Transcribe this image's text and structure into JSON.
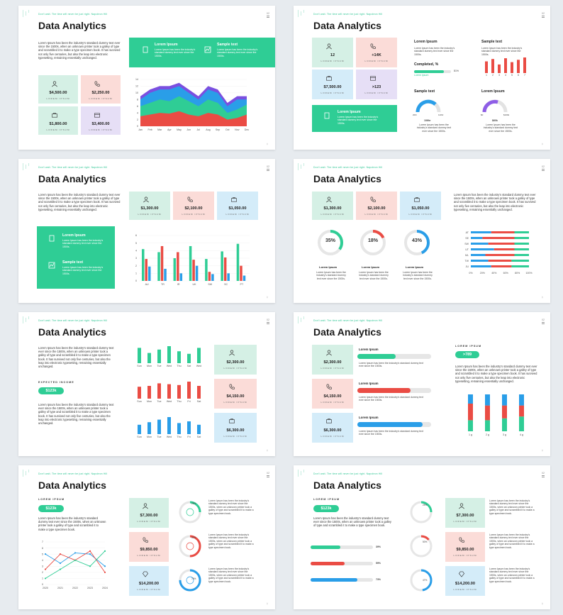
{
  "common": {
    "title": "Data Analytics",
    "tagline": "Don't wait. The time will never be just right. Napoleon Hill",
    "page_label": "02",
    "lorem": "Lorem Ipsum",
    "sample": "Sample text",
    "tile_sub": "LOREM IPSUM",
    "para_long": "Lorem Ipsum has been the industry's standard dummy text ever since the 1500s, when an unknown printer took a galley of type and scrambled it to make a type specimen book. It has survived not only five centuries, but also the leap into electronic typesetting, remaining essentially unchanged.",
    "para_short": "Lorem Ipsum has been the industry's standard dummy text ever since the 1500s.",
    "para_mid": "Lorem Ipsum has been the industry's standard dummy text ever since the 1500s, when an unknown printer took a galley of type and scrambled it to make a type specimen book.",
    "corner_mark": "‡"
  },
  "slide1": {
    "tiles": [
      "$4,500.00",
      "$2,250.00",
      "$1,800.00",
      "$3,400.00"
    ],
    "band": {
      "h1": "Lorem Ipsum",
      "h2": "Sample text",
      "t1": "Lorem Ipsum has been the industry's standard dummy text ever since the 1500s.",
      "t2": "Lorem Ipsum has been the industry's standard dummy text ever since the 1500s."
    }
  },
  "slide2": {
    "tiles": [
      "12",
      "+14K",
      "$7,500.00",
      ">123"
    ],
    "completed": "Completed, %",
    "completed_value": "81%",
    "completed_fraction": 0.81,
    "gauge1_value": "106hr",
    "gauge1_min": "20hr",
    "gauge1_max": "110hr",
    "gauge2_value": "$60k",
    "gauge2_min": "$0",
    "gauge2_max": "$100k"
  },
  "slide3": {
    "tiles": [
      "$1,300.00",
      "$2,100.00",
      "$1,050.00"
    ]
  },
  "slide4": {
    "tiles": [
      "$1,300.00",
      "$2,100.00",
      "$1,050.00"
    ],
    "donuts": [
      "35%",
      "18%",
      "43%"
    ]
  },
  "slide5": {
    "expected": "EXPECTED INCOME",
    "expected_value": "$123k",
    "tiles": [
      "$2,300.00",
      "$4,150.00",
      "$6,300.00"
    ]
  },
  "slide6": {
    "tiles": [
      "$2,300.00",
      "$4,150.00",
      "$6,300.00"
    ],
    "pill": ">789",
    "pill_label": "LOREM IPSUM"
  },
  "slide7": {
    "pill": "$123k",
    "pill_label": "LOREM IPSUM",
    "tiles": [
      "$7,300.00",
      "$9,850.00",
      "$14,200.00"
    ],
    "rings": [
      "25%",
      "50%",
      "75%"
    ]
  },
  "slide8": {
    "pill": "$123k",
    "pill_label": "LOREM IPSUM",
    "tiles": [
      "$7,300.00",
      "$9,850.00",
      "$14,200.00"
    ],
    "bars": [
      "39%",
      "59%",
      "73%"
    ],
    "rings": [
      "25%",
      "50%",
      "47%"
    ]
  },
  "chart_data": [
    {
      "type": "area",
      "title": "",
      "categories": [
        "Jan",
        "Feb",
        "Mar",
        "Apr",
        "May",
        "Jun",
        "Jul",
        "Aug",
        "Sep",
        "Oct",
        "Nov",
        "Dec"
      ],
      "ylim": [
        0,
        14
      ],
      "yticks": [
        0,
        2,
        4,
        6,
        8,
        10,
        12,
        14
      ],
      "series": [
        {
          "values": [
            3,
            3.5,
            4,
            3.8,
            4.5,
            3.5,
            3,
            4,
            3.5,
            2,
            2.5,
            3.5
          ]
        },
        {
          "values": [
            6,
            7,
            8,
            7.5,
            9,
            7.5,
            6,
            8,
            7,
            4,
            5,
            6.5
          ]
        },
        {
          "values": [
            8,
            10,
            11,
            11,
            12,
            10,
            8,
            11,
            10,
            6,
            8,
            8
          ]
        },
        {
          "values": [
            9,
            11,
            12,
            12,
            13,
            11,
            9,
            12,
            11,
            7,
            9,
            9
          ]
        }
      ]
    },
    {
      "type": "bar",
      "title": "",
      "categories": [
        "1",
        "2",
        "3",
        "4",
        "5",
        "6",
        "7"
      ],
      "series": [
        {
          "values": [
            0.75,
            0.9,
            0.55,
            0.95,
            0.7,
            0.85,
            1
          ]
        }
      ]
    },
    {
      "type": "bar",
      "title": "",
      "categories": [
        "AU",
        "TR",
        "IR",
        "UK",
        "SW",
        "SC",
        "PT"
      ],
      "ylim": [
        0,
        6
      ],
      "yticks": [
        0,
        1,
        2,
        3,
        4,
        5,
        6
      ],
      "series": [
        {
          "values": [
            4.2,
            3.8,
            3,
            4.6,
            2.9,
            3.9,
            4.9
          ]
        },
        {
          "values": [
            2.9,
            4.6,
            3.8,
            2.8,
            1.2,
            3.1,
            2
          ]
        },
        {
          "values": [
            1.9,
            1.6,
            1,
            2,
            0.9,
            1,
            0.7
          ]
        }
      ]
    },
    {
      "type": "bar",
      "title": "",
      "categories": [
        "AT",
        "SE",
        "SW",
        "UT",
        "ML",
        "TW",
        "JU"
      ],
      "xlim": [
        0,
        100
      ],
      "xticks": [
        "0%",
        "20%",
        "40%",
        "60%",
        "80%",
        "100%"
      ],
      "series": [
        {
          "values": [
            35,
            20,
            30,
            40,
            25,
            30,
            35
          ]
        },
        {
          "values": [
            40,
            55,
            45,
            35,
            50,
            40,
            35
          ]
        },
        {
          "values": [
            25,
            25,
            25,
            25,
            25,
            30,
            30
          ]
        }
      ]
    },
    {
      "type": "bar",
      "title": "",
      "categories": [
        "Sun",
        "Mon",
        "Tue",
        "Wed",
        "Thu",
        "Sat",
        "Wed"
      ],
      "series": [
        {
          "values": [
            0.9,
            0.6,
            0.8,
            1,
            0.7,
            0.55,
            0.9
          ]
        }
      ]
    },
    {
      "type": "bar",
      "title": "",
      "categories": [
        "Sun",
        "Mon",
        "Tue",
        "Wed",
        "Thu",
        "Fri",
        "Sat"
      ],
      "series": [
        {
          "values": [
            0.7,
            0.75,
            0.9,
            0.85,
            0.8,
            1,
            0.75
          ]
        }
      ]
    },
    {
      "type": "bar",
      "title": "",
      "categories": [
        "Sun",
        "Mon",
        "Tue",
        "Wed",
        "Thu",
        "Fri",
        "Sat"
      ],
      "series": [
        {
          "values": [
            0.55,
            0.7,
            0.85,
            1,
            0.65,
            0.75,
            0.55
          ]
        }
      ]
    },
    {
      "type": "bar",
      "title": "",
      "categories": [
        "1 g",
        "2 g",
        "3 g",
        "4 g"
      ],
      "series": [
        {
          "values": [
            0.3,
            0.3,
            0.35,
            0.4
          ]
        },
        {
          "values": [
            0.45,
            0.4,
            0.35,
            0.3
          ]
        },
        {
          "values": [
            0.25,
            0.3,
            0.3,
            0.3
          ]
        }
      ]
    },
    {
      "type": "line",
      "title": "",
      "categories": [
        "2020",
        "2021",
        "2022",
        "2023",
        "2024"
      ],
      "ylim": [
        0,
        7
      ],
      "yticks": [
        0,
        1,
        2,
        3,
        4,
        5,
        6,
        7
      ],
      "series": [
        {
          "values": [
            5,
            3.5,
            5.2,
            5,
            3
          ]
        },
        {
          "values": [
            2.5,
            5,
            4,
            5.5,
            2
          ]
        },
        {
          "values": [
            1,
            2.5,
            4,
            3,
            5.5
          ]
        }
      ]
    }
  ]
}
